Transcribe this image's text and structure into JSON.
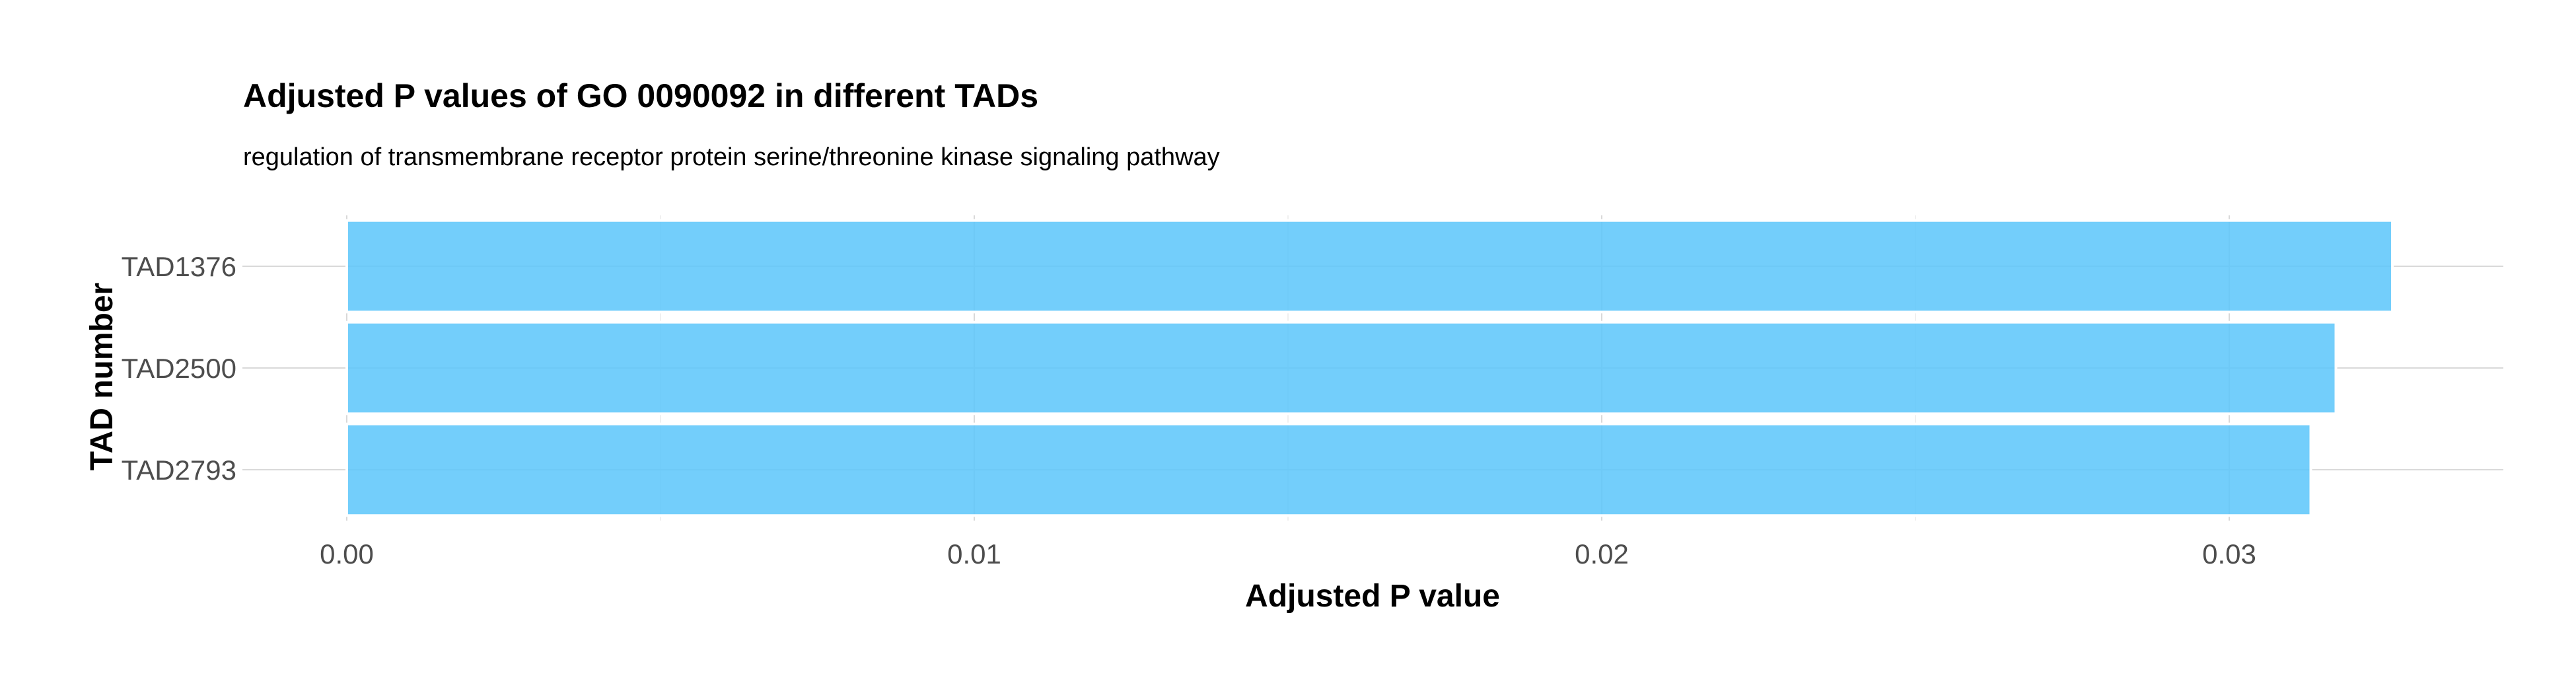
{
  "chart_data": {
    "type": "bar",
    "orientation": "horizontal",
    "title": "Adjusted P values of GO 0090092 in different TADs",
    "subtitle": "regulation of transmembrane receptor protein serine/threonine kinase signaling pathway",
    "xlabel": "Adjusted P value",
    "ylabel": "TAD number",
    "categories": [
      "TAD1376",
      "TAD2500",
      "TAD2793"
    ],
    "values": [
      0.0326,
      0.0317,
      0.0313
    ],
    "xlim": [
      0,
      0.0343
    ],
    "x_ticks": [
      0,
      0.01,
      0.02,
      0.03
    ],
    "x_tick_labels": [
      "0.00",
      "0.01",
      "0.02",
      "0.03"
    ],
    "x_minor_ticks": [
      0.005,
      0.015,
      0.025
    ],
    "grid": true,
    "legend": "none",
    "bar_color": "#5bc6fa"
  }
}
